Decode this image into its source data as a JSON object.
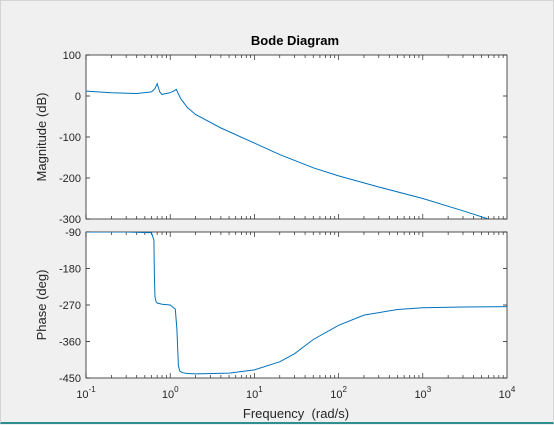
{
  "chart_data": {
    "type": "line",
    "title": "Bode Diagram",
    "xlabel": "Frequency  (rad/s)",
    "xscale": "log",
    "xlim": [
      0.1,
      10000
    ],
    "x_ticks": [
      {
        "value": 0.1,
        "base": "10",
        "exp": "-1"
      },
      {
        "value": 1,
        "base": "10",
        "exp": "0"
      },
      {
        "value": 10,
        "base": "10",
        "exp": "1"
      },
      {
        "value": 100,
        "base": "10",
        "exp": "2"
      },
      {
        "value": 1000,
        "base": "10",
        "exp": "3"
      },
      {
        "value": 10000,
        "base": "10",
        "exp": "4"
      }
    ],
    "grid": false,
    "line_color": "#0072bd",
    "panels": [
      {
        "name": "magnitude",
        "ylabel": "Magnitude (dB)",
        "ylim": [
          -300,
          100
        ],
        "yticks": [
          100,
          0,
          -100,
          -200,
          -300
        ],
        "x": [
          0.1,
          0.2,
          0.4,
          0.6,
          0.66,
          0.7,
          0.72,
          0.75,
          0.8,
          0.9,
          1.0,
          1.1,
          1.18,
          1.25,
          1.35,
          1.6,
          2,
          4,
          10,
          20,
          50,
          100,
          300,
          1000,
          3000,
          6000
        ],
        "y": [
          12,
          8,
          6,
          10,
          18,
          30,
          22,
          10,
          4,
          6,
          8,
          12,
          16,
          5,
          -8,
          -28,
          -45,
          -78,
          -115,
          -143,
          -175,
          -195,
          -222,
          -250,
          -280,
          -300
        ]
      },
      {
        "name": "phase",
        "ylabel": "Phase (deg)",
        "ylim": [
          -450,
          -90
        ],
        "yticks": [
          -90,
          -180,
          -270,
          -360,
          -450
        ],
        "x": [
          0.1,
          0.3,
          0.6,
          0.64,
          0.65,
          0.66,
          0.68,
          0.7,
          0.8,
          1.0,
          1.15,
          1.2,
          1.25,
          1.3,
          1.4,
          1.6,
          2,
          5,
          10,
          20,
          30,
          50,
          100,
          200,
          500,
          1000,
          3000,
          10000
        ],
        "y": [
          -90,
          -90,
          -92,
          -110,
          -200,
          -250,
          -262,
          -265,
          -268,
          -270,
          -280,
          -330,
          -420,
          -433,
          -437,
          -439,
          -440,
          -438,
          -430,
          -410,
          -390,
          -355,
          -320,
          -295,
          -281,
          -277,
          -275,
          -274
        ]
      }
    ]
  }
}
